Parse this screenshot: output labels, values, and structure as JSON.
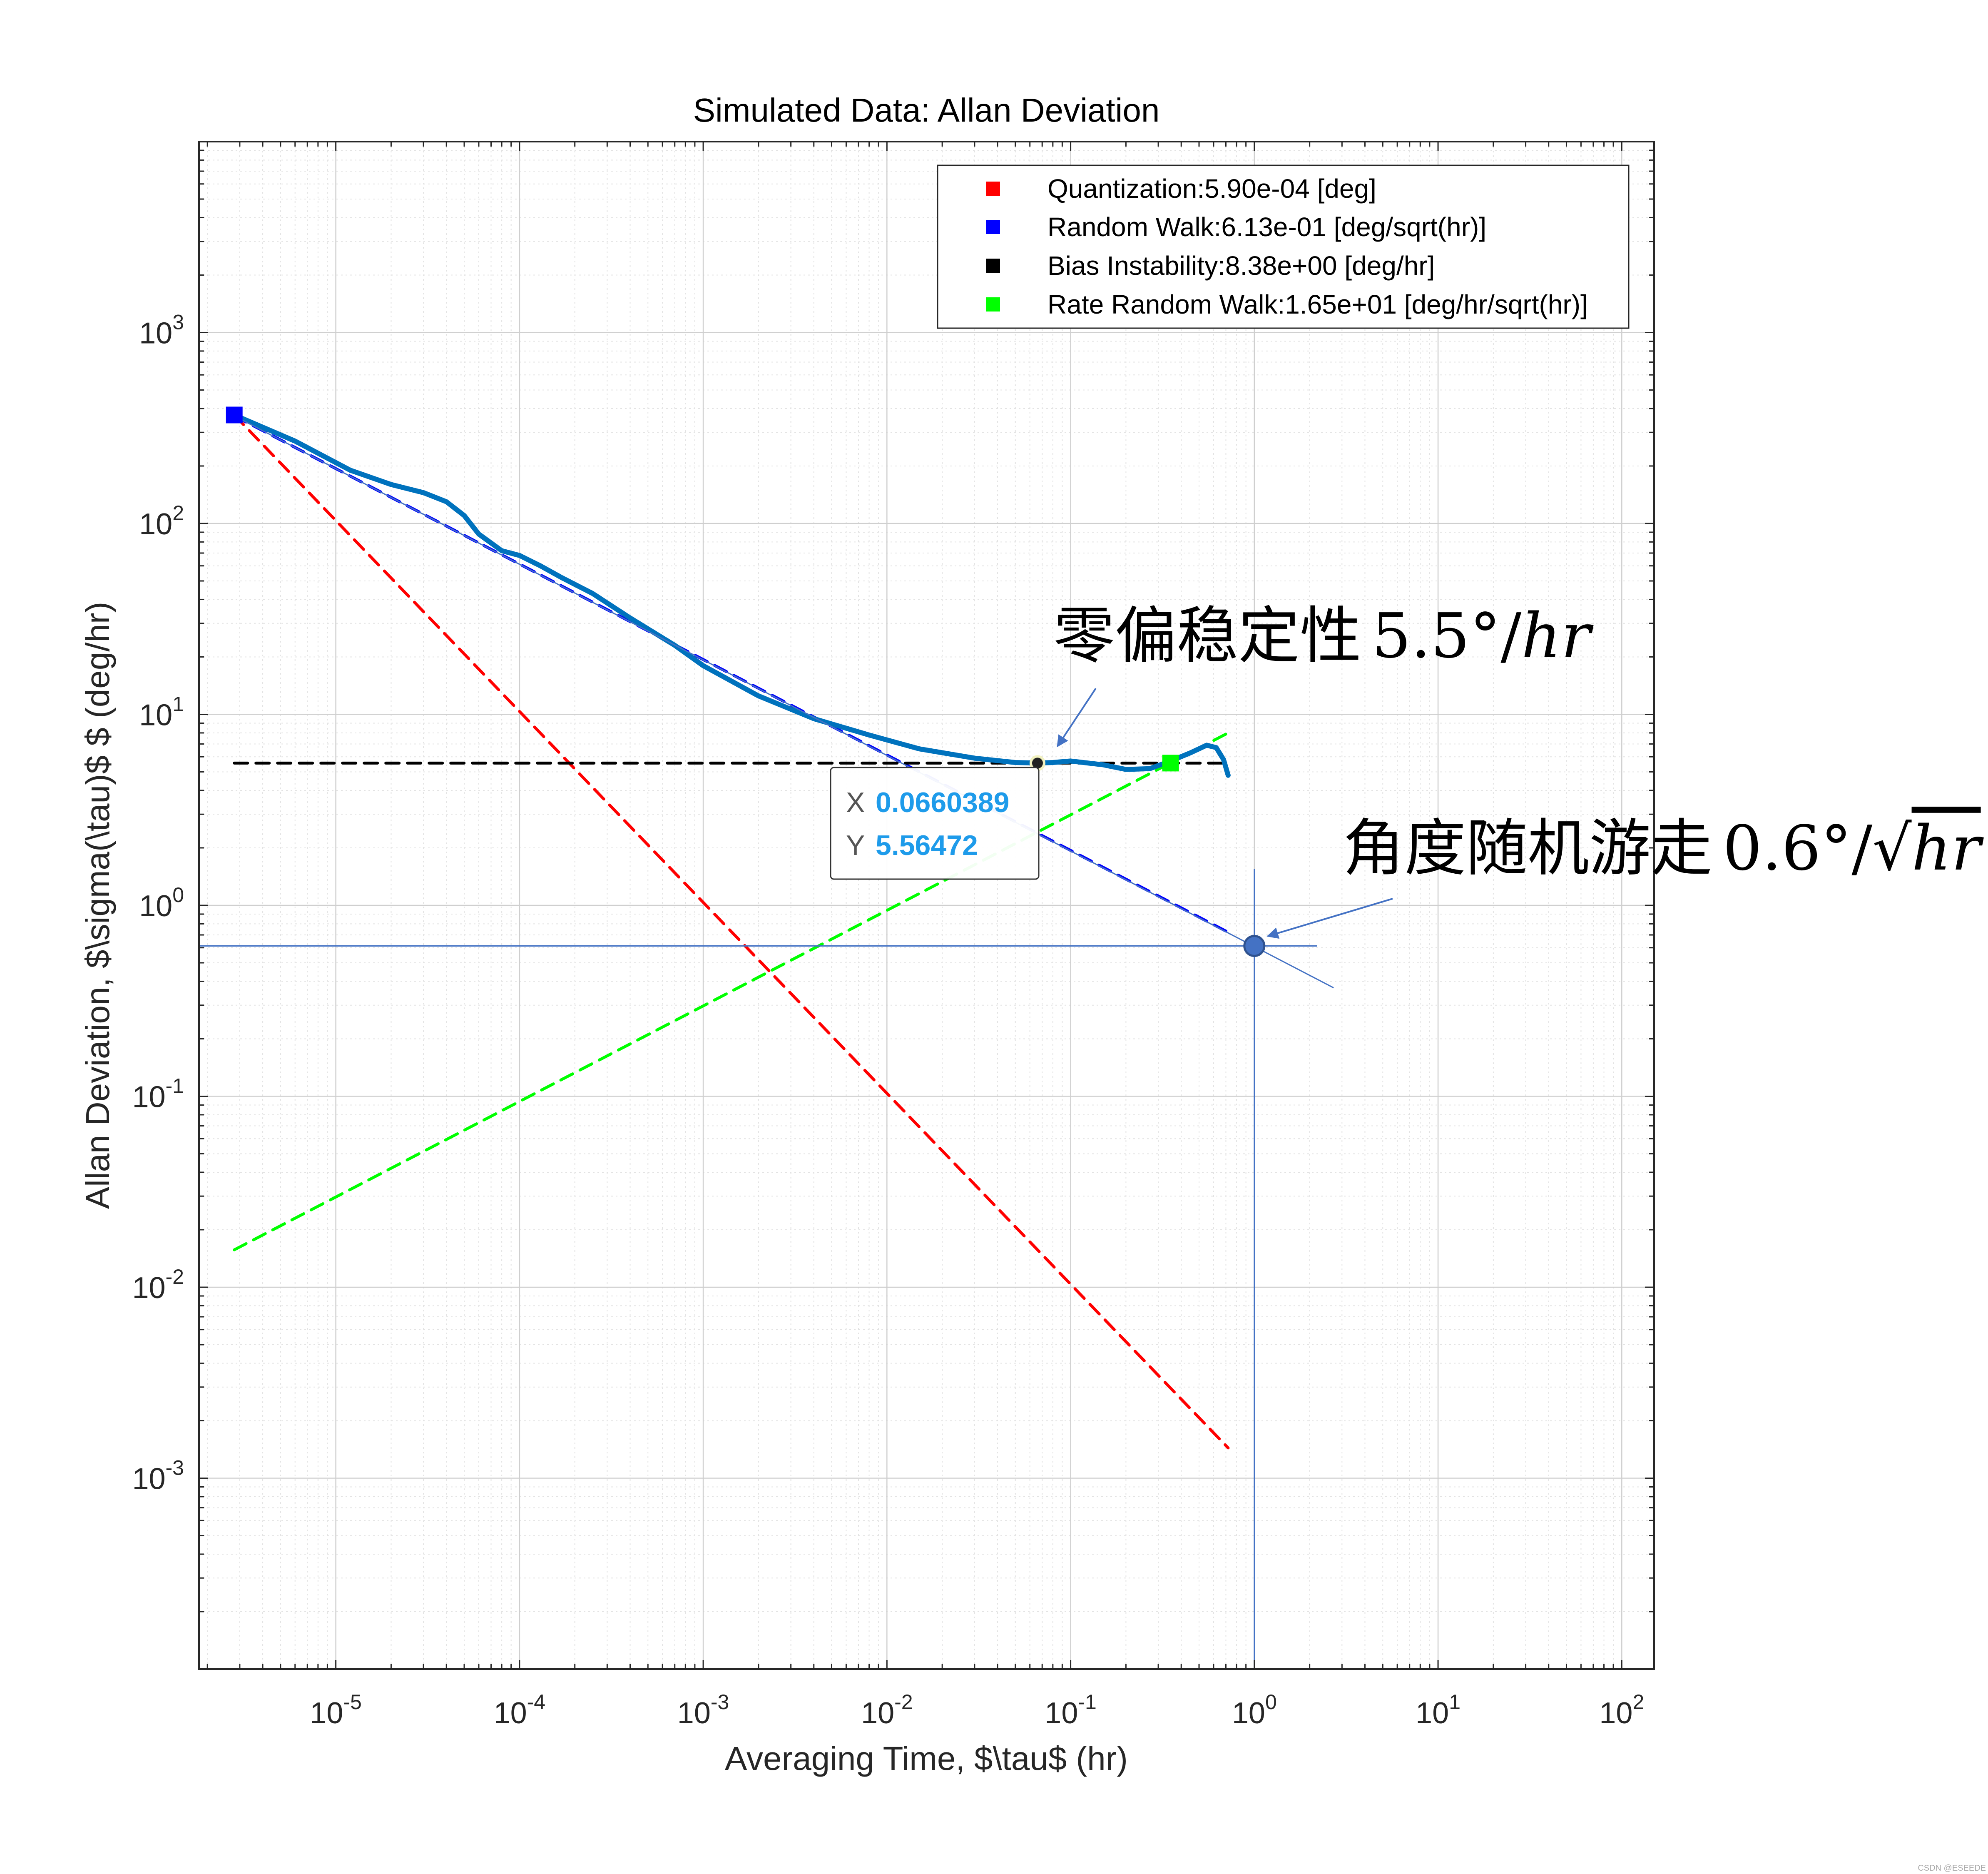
{
  "chart_data": {
    "type": "line",
    "title": "Simulated Data: Allan Deviation",
    "xlabel": "Averaging Time, $\\tau$ (hr)",
    "ylabel": "Allan Deviation, $\\sigma(\\tau)$ $ (deg/hr)",
    "xscale": "log",
    "yscale": "log",
    "xlim": [
      1.8e-06,
      150
    ],
    "ylim": [
      0.0001,
      10000
    ],
    "grid": true,
    "x_ticks": [
      {
        "base": "10",
        "exp": "-5",
        "value": 1e-05
      },
      {
        "base": "10",
        "exp": "-4",
        "value": 0.0001
      },
      {
        "base": "10",
        "exp": "-3",
        "value": 0.001
      },
      {
        "base": "10",
        "exp": "-2",
        "value": 0.01
      },
      {
        "base": "10",
        "exp": "-1",
        "value": 0.1
      },
      {
        "base": "10",
        "exp": "0",
        "value": 1
      },
      {
        "base": "10",
        "exp": "1",
        "value": 10
      },
      {
        "base": "10",
        "exp": "2",
        "value": 100
      }
    ],
    "y_ticks": [
      {
        "base": "10",
        "exp": "3",
        "value": 1000
      },
      {
        "base": "10",
        "exp": "2",
        "value": 100
      },
      {
        "base": "10",
        "exp": "1",
        "value": 10
      },
      {
        "base": "10",
        "exp": "0",
        "value": 1
      },
      {
        "base": "10",
        "exp": "-1",
        "value": 0.1
      },
      {
        "base": "10",
        "exp": "-2",
        "value": 0.01
      },
      {
        "base": "10",
        "exp": "-3",
        "value": 0.001
      }
    ],
    "series": [
      {
        "name": "Allan deviation",
        "style": "solid",
        "color": "#0072BD",
        "x": [
          2.8e-06,
          6e-06,
          1.2e-05,
          2e-05,
          3e-05,
          4e-05,
          5e-05,
          6e-05,
          8e-05,
          0.0001,
          0.00013,
          0.00017,
          0.00025,
          0.0004,
          0.0007,
          0.001,
          0.002,
          0.004,
          0.008,
          0.015,
          0.03,
          0.05,
          0.066,
          0.08,
          0.1,
          0.15,
          0.2,
          0.27,
          0.35,
          0.45,
          0.55,
          0.62,
          0.68,
          0.72
        ],
        "y": [
          370,
          270,
          190,
          160,
          145,
          130,
          110,
          88,
          72,
          68,
          60,
          52,
          43,
          32,
          23,
          18,
          12.5,
          9.5,
          7.8,
          6.6,
          5.9,
          5.6,
          5.56,
          5.6,
          5.7,
          5.45,
          5.15,
          5.2,
          5.7,
          6.3,
          6.9,
          6.7,
          5.8,
          4.8
        ]
      },
      {
        "name": "Quantization:5.90e-04 [deg]",
        "style": "dashed",
        "color": "#FF0000",
        "x": [
          2.8e-06,
          0.72
        ],
        "y": [
          370,
          0.00144
        ]
      },
      {
        "name": "Random Walk:6.13e-01 [deg/sqrt(hr)]",
        "style": "dashed",
        "color": "#0000FF",
        "x": [
          2.8e-06,
          0.72
        ],
        "y": [
          366,
          0.723
        ]
      },
      {
        "name": "Bias Instability:8.38e+00 [deg/hr]",
        "style": "dashed",
        "color": "#000000",
        "x": [
          2.8e-06,
          0.72
        ],
        "y": [
          5.56,
          5.56
        ]
      },
      {
        "name": "Rate Random Walk:1.65e+01 [deg/hr/sqrt(hr)]",
        "style": "dashed",
        "color": "#00FF00",
        "x": [
          2.8e-06,
          0.72
        ],
        "y": [
          0.0157,
          8.0
        ]
      }
    ],
    "markers": [
      {
        "name": "random-walk-marker",
        "x": 2.8e-06,
        "y": 370,
        "color": "#0000FF"
      },
      {
        "name": "bias-instability-marker",
        "x": 0.066,
        "y": 5.56,
        "color": "#222222"
      },
      {
        "name": "rate-random-walk-marker",
        "x": 0.35,
        "y": 5.56,
        "color": "#00FF00"
      }
    ],
    "random_walk_fit": {
      "x": [
        2.8e-06,
        2.7
      ],
      "y": [
        366,
        0.37
      ]
    },
    "tau1_point": {
      "x": 1,
      "y": 0.613
    },
    "crosshair": {
      "x_from": 1.8e-06,
      "x_to": 2.2,
      "y": 0.613,
      "y_from": 0.0001,
      "y_to": 1.55
    }
  },
  "legend": {
    "placement": "top-right",
    "entries": [
      {
        "label": "Quantization:5.90e-04 [deg]",
        "color": "#FF0000"
      },
      {
        "label": "Random Walk:6.13e-01 [deg/sqrt(hr)]",
        "color": "#0000FF"
      },
      {
        "label": "Bias Instability:8.38e+00 [deg/hr]",
        "color": "#000000"
      },
      {
        "label": "Rate Random Walk:1.65e+01 [deg/hr/sqrt(hr)]",
        "color": "#00FF00"
      }
    ]
  },
  "datatip": {
    "x_label": "X",
    "x_value": "0.0660389",
    "y_label": "Y",
    "y_value": "5.56472"
  },
  "annotations": {
    "bias_instability": {
      "chinese": "零偏稳定性",
      "value": "5.5°",
      "slash": "/",
      "unit": "hr"
    },
    "angle_random_walk": {
      "chinese": "角度随机游走",
      "value": "0.6°",
      "slash": "/",
      "radical": "√",
      "unit": "hr"
    }
  },
  "watermark": "CSDN @ESEEDE"
}
